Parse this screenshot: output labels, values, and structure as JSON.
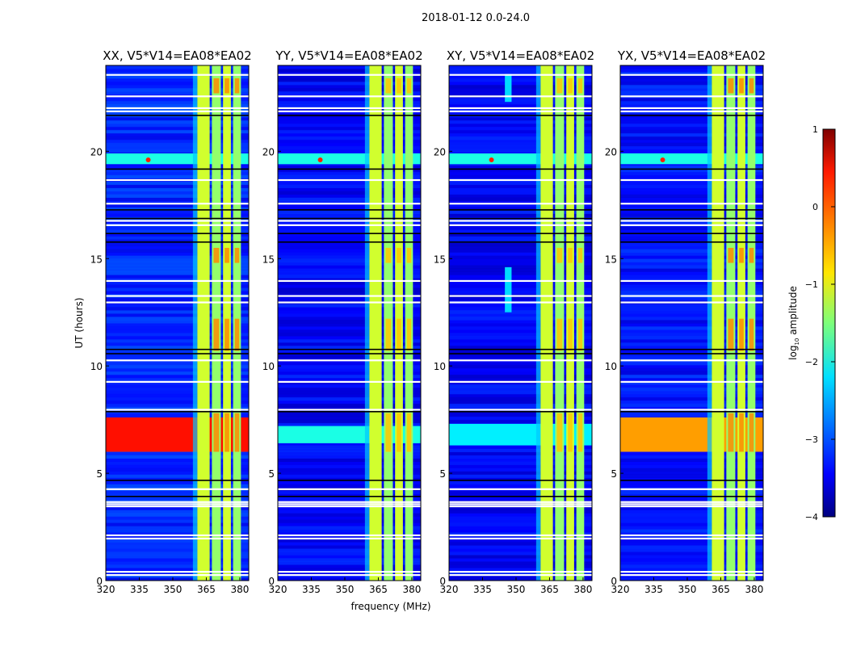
{
  "chart_data": {
    "type": "heatmap",
    "title": "2018-01-12 0.0-24.0",
    "xlabel": "frequency (MHz)",
    "ylabel": "UT (hours)",
    "xlim": [
      320,
      384
    ],
    "ylim": [
      0,
      24
    ],
    "xticks": [
      "320",
      "335",
      "350",
      "365",
      "380"
    ],
    "xtick_values": [
      320,
      335,
      350,
      365,
      380
    ],
    "yticks": [
      "0",
      "5",
      "10",
      "15",
      "20"
    ],
    "ytick_values": [
      0,
      5,
      10,
      15,
      20
    ],
    "colorbar": {
      "label": "log10 amplitude",
      "label_main": "log",
      "label_sub": "10",
      "label_rest": " amplitude",
      "range": [
        -4,
        1
      ],
      "ticks": [
        "1",
        "0",
        "−1",
        "−2",
        "−3",
        "−4"
      ],
      "tick_values": [
        1,
        0,
        -1,
        -2,
        -3,
        -4
      ],
      "colormap": "jet"
    },
    "panels": [
      {
        "title": "XX, V5*V14=EA08*EA02",
        "background_log_amp": -3.2,
        "strong_band_hours": [
          6.0,
          7.6
        ],
        "strong_band_log_amp": 0.3,
        "extra_stripes": []
      },
      {
        "title": "YY, V5*V14=EA08*EA02",
        "background_log_amp": -3.4,
        "strong_band_hours": [
          6.4,
          7.2
        ],
        "strong_band_log_amp": -2.0,
        "extra_stripes": []
      },
      {
        "title": "XY, V5*V14=EA08*EA02",
        "background_log_amp": -3.4,
        "strong_band_hours": [
          6.3,
          7.3
        ],
        "strong_band_log_amp": -2.2,
        "extra_stripes": [
          {
            "freq": [
              345,
              348
            ],
            "hours": [
              12.5,
              14.6
            ],
            "log_amp": -2.3
          },
          {
            "freq": [
              345,
              348
            ],
            "hours": [
              22.3,
              23.6
            ],
            "log_amp": -2.3
          }
        ]
      },
      {
        "title": "YX, V5*V14=EA08*EA02",
        "background_log_amp": -3.3,
        "strong_band_hours": [
          6.0,
          7.6
        ],
        "strong_band_log_amp": -0.4,
        "extra_stripes": []
      }
    ],
    "rfi_blocks_mhz": [
      [
        361,
        366.5
      ],
      [
        367.5,
        371.5
      ],
      [
        372.5,
        376
      ],
      [
        377,
        380.5
      ]
    ],
    "rfi_log_amp": -1.1,
    "rfi_hot_hours": [
      [
        10.7,
        12.2
      ],
      [
        14.8,
        15.5
      ],
      [
        6.0,
        7.8
      ],
      [
        22.7,
        23.4
      ]
    ],
    "rfi_hot_log_amp": -0.3,
    "bright_band_hours": [
      19.4,
      19.9
    ],
    "bright_band_log_amp": -2.0,
    "flagged_white_hours": [
      0.3,
      0.45,
      2.0,
      2.15,
      3.5,
      3.6,
      3.7,
      4.3,
      8.0,
      9.3,
      10.3,
      13.0,
      13.3,
      14.0,
      16.6,
      16.8,
      17.6,
      18.7,
      21.9,
      22.05,
      22.6,
      23.6
    ],
    "flagged_black_hours": [
      3.95,
      4.7,
      7.9,
      10.6,
      10.8,
      15.8,
      16.2,
      16.9,
      17.3,
      19.2,
      21.7
    ]
  }
}
